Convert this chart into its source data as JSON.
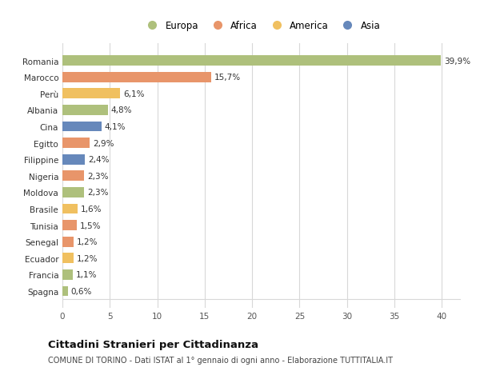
{
  "categories": [
    "Spagna",
    "Francia",
    "Ecuador",
    "Senegal",
    "Tunisia",
    "Brasile",
    "Moldova",
    "Nigeria",
    "Filippine",
    "Egitto",
    "Cina",
    "Albania",
    "Perù",
    "Marocco",
    "Romania"
  ],
  "values": [
    0.6,
    1.1,
    1.2,
    1.2,
    1.5,
    1.6,
    2.3,
    2.3,
    2.4,
    2.9,
    4.1,
    4.8,
    6.1,
    15.7,
    39.9
  ],
  "labels": [
    "0,6%",
    "1,1%",
    "1,2%",
    "1,2%",
    "1,5%",
    "1,6%",
    "2,3%",
    "2,3%",
    "2,4%",
    "2,9%",
    "4,1%",
    "4,8%",
    "6,1%",
    "15,7%",
    "39,9%"
  ],
  "colors": [
    "#aec07c",
    "#aec07c",
    "#f0c060",
    "#e8956a",
    "#e8956a",
    "#f0c060",
    "#aec07c",
    "#e8956a",
    "#6688bb",
    "#e8956a",
    "#6688bb",
    "#aec07c",
    "#f0c060",
    "#e8956a",
    "#aec07c"
  ],
  "legend": [
    {
      "label": "Europa",
      "color": "#aec07c"
    },
    {
      "label": "Africa",
      "color": "#e8956a"
    },
    {
      "label": "America",
      "color": "#f0c060"
    },
    {
      "label": "Asia",
      "color": "#6688bb"
    }
  ],
  "title": "Cittadini Stranieri per Cittadinanza",
  "subtitle": "COMUNE DI TORINO - Dati ISTAT al 1° gennaio di ogni anno - Elaborazione TUTTITALIA.IT",
  "xlim": [
    0,
    42
  ],
  "xticks": [
    0,
    5,
    10,
    15,
    20,
    25,
    30,
    35,
    40
  ],
  "background_color": "#ffffff",
  "grid_color": "#d8d8d8"
}
